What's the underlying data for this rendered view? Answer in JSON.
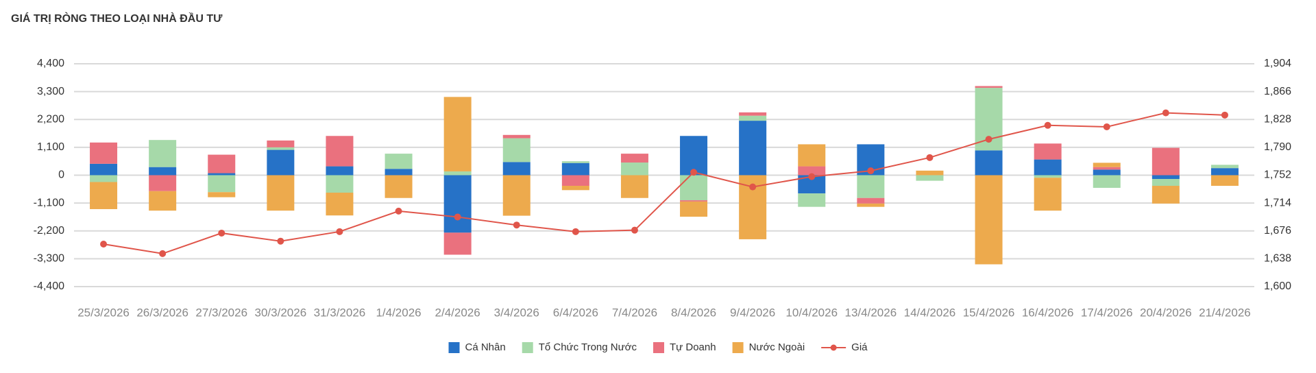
{
  "chart_data": {
    "type": "bar",
    "title": "GIÁ TRỊ RÒNG THEO LOẠI NHÀ ĐẦU TƯ",
    "categories": [
      "25/3/2026",
      "26/3/2026",
      "27/3/2026",
      "30/3/2026",
      "31/3/2026",
      "1/4/2026",
      "2/4/2026",
      "3/4/2026",
      "6/4/2026",
      "7/4/2026",
      "8/4/2026",
      "9/4/2026",
      "10/4/2026",
      "13/4/2026",
      "14/4/2026",
      "15/4/2026",
      "16/4/2026",
      "17/4/2026",
      "20/4/2026",
      "21/4/2026"
    ],
    "series": [
      {
        "name": "Cá Nhân",
        "color": "#2672c7",
        "values": [
          450,
          320,
          80,
          1000,
          350,
          250,
          -2270,
          520,
          480,
          0,
          1550,
          2150,
          -720,
          1220,
          0,
          980,
          620,
          220,
          -150,
          280
        ]
      },
      {
        "name": "Tổ Chức Trong Nước",
        "color": "#a6d9a9",
        "values": [
          -270,
          1070,
          -670,
          100,
          -690,
          600,
          150,
          940,
          70,
          500,
          -990,
          200,
          -530,
          -900,
          -220,
          2470,
          -100,
          -500,
          -270,
          130
        ]
      },
      {
        "name": "Tự Doanh",
        "color": "#ea717e",
        "values": [
          840,
          -630,
          730,
          270,
          1200,
          0,
          -870,
          130,
          -420,
          350,
          -50,
          130,
          350,
          -220,
          0,
          70,
          630,
          100,
          1080,
          0
        ]
      },
      {
        "name": "Nước Ngoài",
        "color": "#edaa4d",
        "values": [
          -1070,
          -770,
          -200,
          -1400,
          -900,
          -900,
          2940,
          -1600,
          -170,
          -900,
          -600,
          -2530,
          870,
          -130,
          180,
          -3520,
          -1300,
          170,
          -700,
          -420
        ]
      },
      {
        "name": "Giá",
        "color": "#e0554a",
        "type": "line",
        "axis": "y2",
        "values": [
          1658,
          1645,
          1673,
          1662,
          1675,
          1703,
          1695,
          1684,
          1675,
          1677,
          1756,
          1736,
          1750,
          1758,
          1776,
          1801,
          1820,
          1818,
          1837,
          1834
        ]
      }
    ],
    "ylim": [
      -4400,
      4400
    ],
    "yticks": [
      {
        "value": -4400,
        "label": "-4,400"
      },
      {
        "value": -3300,
        "label": "-3,300"
      },
      {
        "value": -2200,
        "label": "-2,200"
      },
      {
        "value": -1100,
        "label": "-1,100"
      },
      0,
      {
        "value": 1100,
        "label": "1,100"
      },
      {
        "value": 2200,
        "label": "2,200"
      },
      {
        "value": 3300,
        "label": "3,300"
      },
      {
        "value": 4400,
        "label": "4,400"
      }
    ],
    "y2lim": [
      1600,
      1904
    ],
    "y2ticks": [
      {
        "value": 1600,
        "label": "1,600"
      },
      {
        "value": 1638,
        "label": "1,638"
      },
      {
        "value": 1676,
        "label": "1,676"
      },
      {
        "value": 1714,
        "label": "1,714"
      },
      {
        "value": 1752,
        "label": "1,752"
      },
      {
        "value": 1790,
        "label": "1,790"
      },
      {
        "value": 1828,
        "label": "1,828"
      },
      {
        "value": 1866,
        "label": "1,866"
      },
      {
        "value": 1904,
        "label": "1,904"
      }
    ],
    "grid": true,
    "stacked": true,
    "legend": "bottom"
  }
}
